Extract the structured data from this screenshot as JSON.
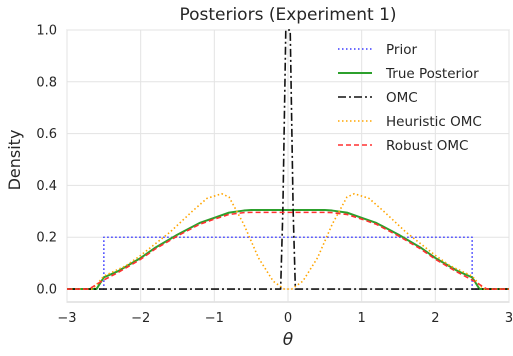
{
  "chart_data": {
    "type": "line",
    "title": "Posteriors (Experiment 1)",
    "xlabel": "θ",
    "ylabel": "Density",
    "xlim": [
      -3,
      3
    ],
    "ylim": [
      -0.05,
      1.0
    ],
    "xticks": [
      -3,
      -2,
      -1,
      0,
      1,
      2,
      3
    ],
    "xtick_labels": [
      "−3",
      "−2",
      "−1",
      "0",
      "1",
      "2",
      "3"
    ],
    "yticks": [
      0.0,
      0.2,
      0.4,
      0.6,
      0.8,
      1.0
    ],
    "ytick_labels": [
      "0.0",
      "0.2",
      "0.4",
      "0.6",
      "0.8",
      "1.0"
    ],
    "grid": true,
    "legend_position": "top-right",
    "series": [
      {
        "name": "Prior",
        "color": "#3b3bff",
        "dash": "dotted",
        "x": [
          -3,
          -2.5,
          -2.5,
          2.5,
          2.5,
          3
        ],
        "y": [
          0,
          0,
          0.2,
          0.2,
          0,
          0
        ]
      },
      {
        "name": "True Posterior",
        "color": "#2ca02c",
        "dash": "solid",
        "x": [
          -3,
          -2.6,
          -2.5,
          -2.3,
          -2.0,
          -1.8,
          -1.5,
          -1.2,
          -1.0,
          -0.8,
          -0.6,
          -0.5,
          -0.3,
          0,
          0.3,
          0.5,
          0.6,
          0.8,
          1.0,
          1.2,
          1.5,
          1.8,
          2.0,
          2.3,
          2.5,
          2.6,
          3
        ],
        "y": [
          0,
          0,
          0.045,
          0.07,
          0.12,
          0.16,
          0.21,
          0.255,
          0.275,
          0.295,
          0.303,
          0.305,
          0.305,
          0.305,
          0.305,
          0.305,
          0.303,
          0.295,
          0.275,
          0.255,
          0.21,
          0.16,
          0.12,
          0.07,
          0.045,
          0,
          0
        ]
      },
      {
        "name": "OMC",
        "color": "#111111",
        "dash": "dashdot",
        "x": [
          -3,
          -0.1,
          -0.07,
          -0.03,
          0.03,
          0.07,
          0.1,
          3
        ],
        "y": [
          0,
          0,
          0.3,
          1.0,
          1.0,
          0.3,
          0,
          0
        ]
      },
      {
        "name": "Heuristic OMC",
        "color": "#ffa500",
        "dash": "dotted",
        "x": [
          -3,
          -2.65,
          -2.5,
          -2.2,
          -2.0,
          -1.6,
          -1.3,
          -1.1,
          -0.9,
          -0.8,
          -0.6,
          -0.4,
          -0.2,
          -0.05,
          0,
          0.05,
          0.2,
          0.4,
          0.6,
          0.8,
          0.9,
          1.1,
          1.3,
          1.6,
          2.0,
          2.2,
          2.5,
          2.65,
          3
        ],
        "y": [
          0,
          0,
          0.05,
          0.09,
          0.13,
          0.22,
          0.3,
          0.35,
          0.368,
          0.355,
          0.25,
          0.12,
          0.03,
          0.0,
          0.0,
          0.0,
          0.03,
          0.12,
          0.25,
          0.355,
          0.368,
          0.35,
          0.3,
          0.22,
          0.13,
          0.09,
          0.05,
          0,
          0
        ]
      },
      {
        "name": "Robust OMC",
        "color": "#ff3030",
        "dash": "dashed",
        "x": [
          -3,
          -2.7,
          -2.5,
          -2.3,
          -2.0,
          -1.8,
          -1.5,
          -1.2,
          -1.0,
          -0.8,
          -0.6,
          -0.5,
          -0.3,
          0,
          0.3,
          0.5,
          0.6,
          0.8,
          1.0,
          1.2,
          1.5,
          1.8,
          2.0,
          2.3,
          2.5,
          2.7,
          3
        ],
        "y": [
          0,
          0,
          0.035,
          0.065,
          0.115,
          0.155,
          0.205,
          0.25,
          0.27,
          0.288,
          0.295,
          0.296,
          0.296,
          0.296,
          0.296,
          0.296,
          0.295,
          0.288,
          0.27,
          0.25,
          0.205,
          0.155,
          0.115,
          0.065,
          0.035,
          0,
          0
        ]
      }
    ]
  }
}
